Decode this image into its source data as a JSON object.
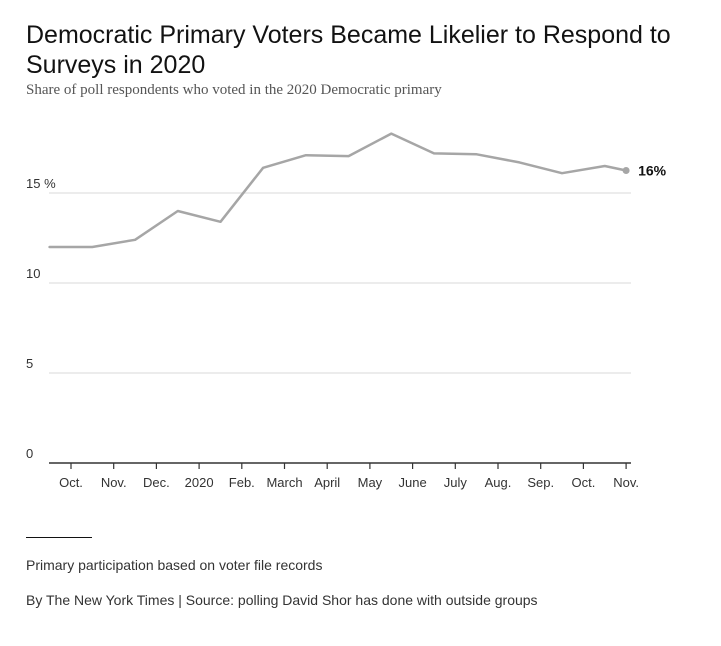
{
  "title": "Democratic Primary Voters Became Likelier to Respond to Surveys in 2020",
  "subtitle": "Share of poll respondents who voted in the 2020 Democratic primary",
  "note": "Primary participation based on voter file records",
  "credit": "By The New York Times | Source: polling David Shor has done with outside groups",
  "colors": {
    "line": "#a6a6a6",
    "grid": "#e6e6e6",
    "axis": "#333333"
  },
  "chart_data": {
    "type": "line",
    "title": "Democratic Primary Voters Became Likelier to Respond to Surveys in 2020",
    "subtitle": "Share of poll respondents who voted in the 2020 Democratic primary",
    "xlabel": "",
    "ylabel": "",
    "ylim": [
      0,
      20
    ],
    "grid": true,
    "y_ticks": [
      {
        "value": 0,
        "label": "0"
      },
      {
        "value": 5,
        "label": "5"
      },
      {
        "value": 10,
        "label": "10"
      },
      {
        "value": 15,
        "label": "15 %"
      }
    ],
    "x_ticks": [
      "Oct.",
      "Nov.",
      "Dec.",
      "2020",
      "Feb.",
      "March",
      "April",
      "May",
      "June",
      "July",
      "Aug.",
      "Sep.",
      "Oct.",
      "Nov."
    ],
    "x_index_range": [
      -0.5,
      13
    ],
    "series": [
      {
        "values": [
          {
            "x": -0.5,
            "y": 12.0
          },
          {
            "x": 0.5,
            "y": 12.0
          },
          {
            "x": 1.5,
            "y": 12.4
          },
          {
            "x": 2.5,
            "y": 14.0
          },
          {
            "x": 3.5,
            "y": 13.4
          },
          {
            "x": 4.5,
            "y": 16.4
          },
          {
            "x": 5.5,
            "y": 17.1
          },
          {
            "x": 6.5,
            "y": 17.05
          },
          {
            "x": 7.5,
            "y": 18.3
          },
          {
            "x": 8.5,
            "y": 17.2
          },
          {
            "x": 9.5,
            "y": 17.15
          },
          {
            "x": 10.5,
            "y": 16.7
          },
          {
            "x": 11.5,
            "y": 16.1
          },
          {
            "x": 12.5,
            "y": 16.5
          },
          {
            "x": 13.0,
            "y": 16.25
          }
        ]
      }
    ],
    "end_label": "16%"
  }
}
